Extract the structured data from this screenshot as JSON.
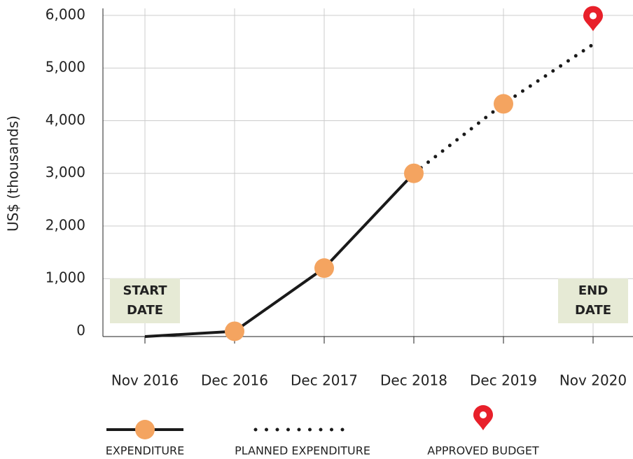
{
  "chart_data": {
    "type": "line",
    "ylabel": "US$ (thousands)",
    "categories": [
      "Nov 2016",
      "Dec 2016",
      "Dec 2017",
      "Dec 2018",
      "Dec 2019",
      "Nov 2020"
    ],
    "series": [
      {
        "name": "EXPENDITURE",
        "color": "#1a1a1a",
        "style": "solid",
        "values": [
          -100,
          0,
          1200,
          3000,
          null,
          null
        ]
      },
      {
        "name": "PLANNED EXPENDITURE",
        "color": "#1a1a1a",
        "style": "dotted",
        "values": [
          null,
          null,
          null,
          3000,
          4320,
          5450
        ]
      }
    ],
    "marker_color": "#f4a460",
    "approved_budget": {
      "name": "APPROVED BUDGET",
      "value": 5700,
      "color": "#e8202a"
    },
    "annotations": [
      {
        "lines": [
          "START",
          "DATE"
        ]
      },
      {
        "lines": [
          "END",
          "DATE"
        ]
      }
    ],
    "ylim": [
      -100,
      6000
    ],
    "yticks": [
      0,
      {
        "value": 1000,
        "label": "1,000"
      },
      {
        "value": 2000,
        "label": "2,000"
      },
      {
        "value": 3000,
        "label": "3,000"
      },
      {
        "value": 4000,
        "label": "4,000"
      },
      {
        "value": 5000,
        "label": "5,000"
      },
      {
        "value": 6000,
        "label": "6,000"
      }
    ],
    "grid": true
  }
}
